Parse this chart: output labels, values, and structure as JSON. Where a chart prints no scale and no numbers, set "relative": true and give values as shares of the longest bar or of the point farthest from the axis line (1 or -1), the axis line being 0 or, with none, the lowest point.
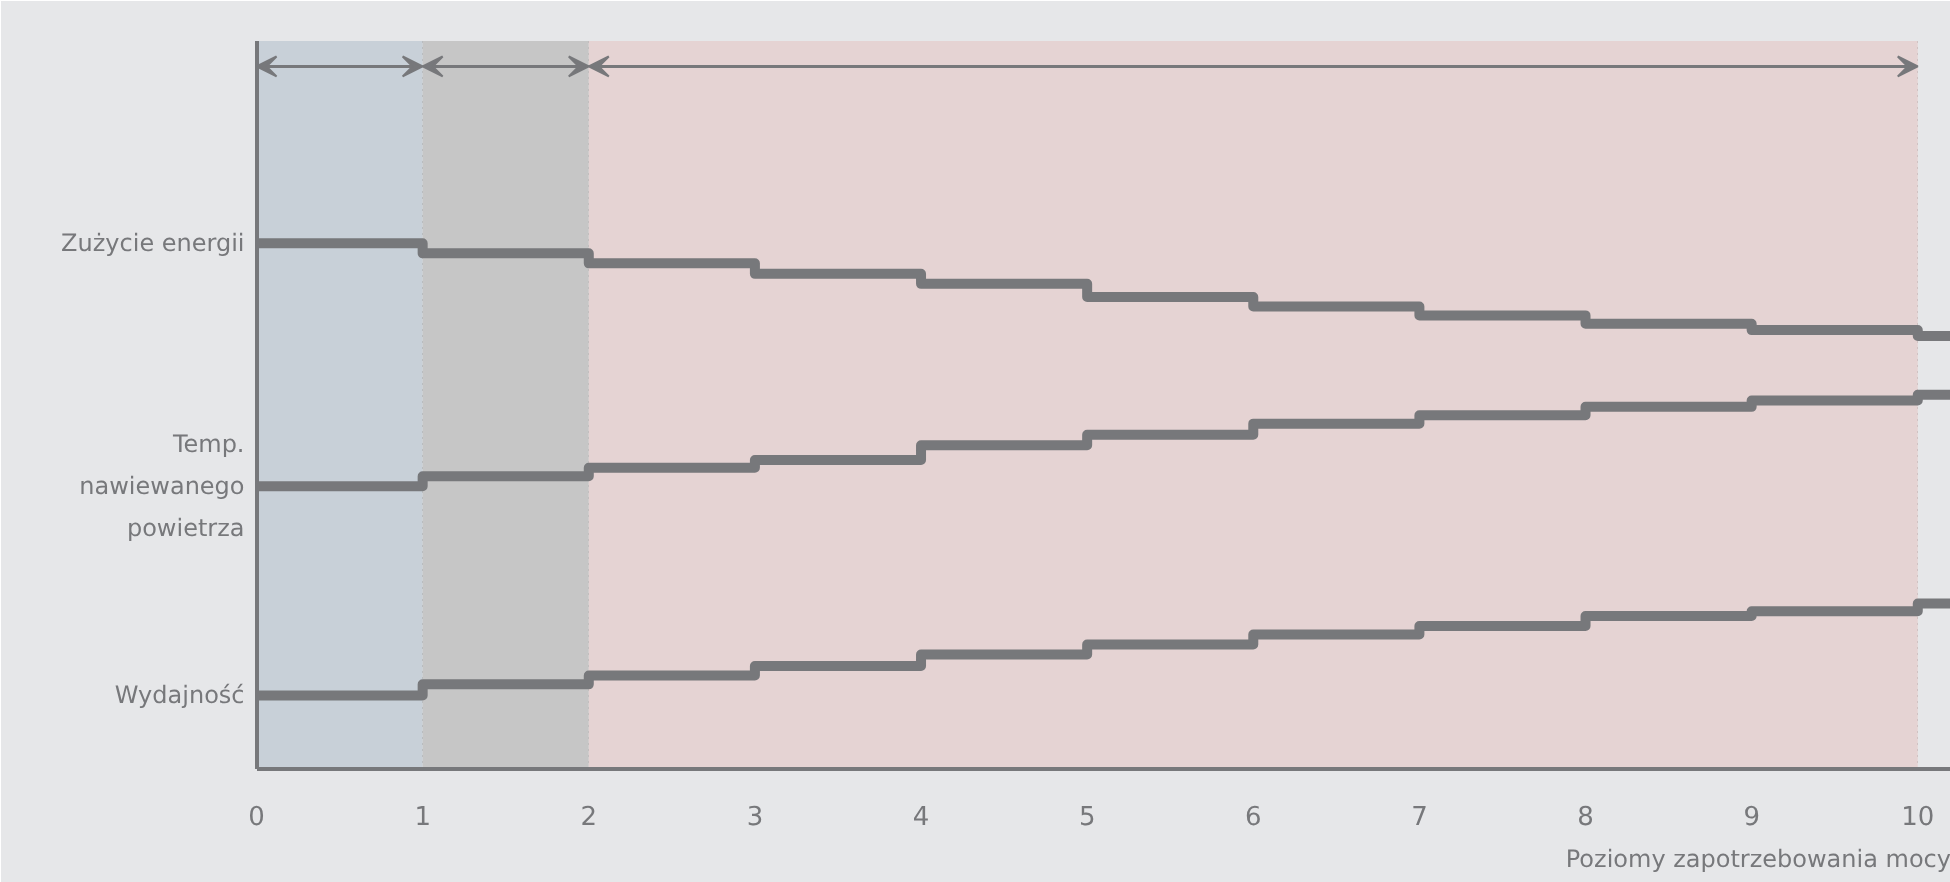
{
  "chart_data": {
    "type": "step",
    "relative": true,
    "xlabel": "Poziomy zapotrzebowania mocy",
    "x": [
      0,
      1,
      2,
      3,
      4,
      5,
      6,
      7,
      8,
      9,
      10,
      10.2
    ],
    "xlim": [
      0,
      10.2
    ],
    "xticks": [
      0,
      1,
      2,
      3,
      4,
      5,
      6,
      7,
      8,
      9,
      10
    ],
    "grid": "x",
    "series": [
      {
        "name": "Zużycie energii",
        "color": "#77787b",
        "values": [
          1.0,
          0.981,
          0.962,
          0.942,
          0.923,
          0.898,
          0.88,
          0.863,
          0.847,
          0.835,
          0.824,
          0.824
        ]
      },
      {
        "name": "Temp.\nnawiewanego\npowietrza",
        "color": "#77787b",
        "values": [
          0.538,
          0.557,
          0.573,
          0.588,
          0.616,
          0.636,
          0.657,
          0.673,
          0.689,
          0.701,
          0.712,
          0.712
        ]
      },
      {
        "name": "Wydajność",
        "color": "#77787b",
        "values": [
          0.14,
          0.161,
          0.178,
          0.196,
          0.218,
          0.237,
          0.256,
          0.272,
          0.291,
          0.3,
          0.315,
          0.315
        ]
      }
    ],
    "bands": [
      {
        "axis": "x",
        "from": 0,
        "to": 1,
        "color": "#c8d0d8"
      },
      {
        "axis": "x",
        "from": 1,
        "to": 2,
        "color": "#c6c6c6"
      },
      {
        "axis": "x",
        "from": 2,
        "to": 10,
        "color": "#e5d3d3"
      }
    ]
  }
}
